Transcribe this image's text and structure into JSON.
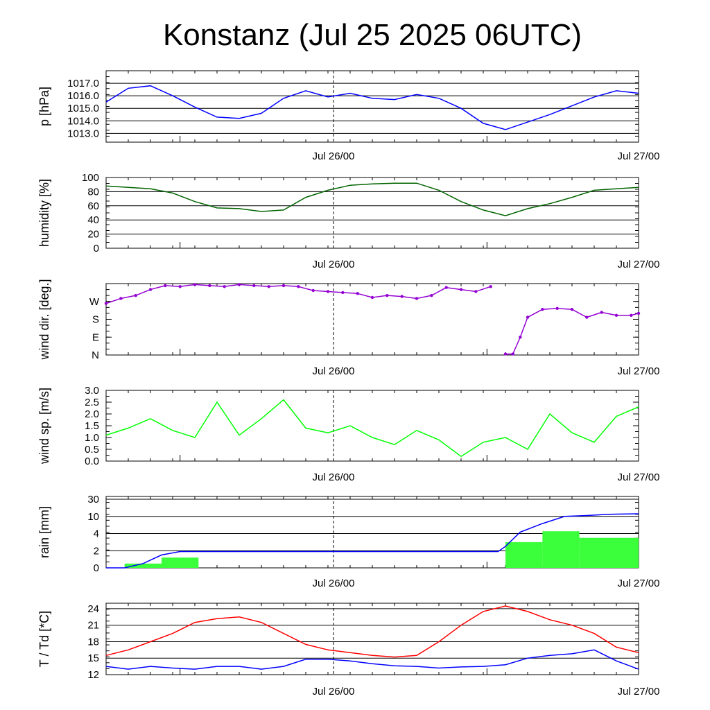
{
  "title": "Konstanz (Jul 25 2025 06UTC)",
  "colors": {
    "pressure": "#0000ff",
    "humidity": "#006400",
    "wind_dir": "#9400d3",
    "wind_speed": "#00ff00",
    "rain_bar": "#3cff3c",
    "rain_sum": "#0000ff",
    "temperature": "#ff0000",
    "dewpoint": "#0000ff"
  },
  "chart_data": [
    {
      "type": "line",
      "ylabel": "p [hPa]",
      "x_ticks": [
        "Jul 26/00",
        "Jul 27/00"
      ],
      "x_hours": [
        0,
        6,
        12,
        18,
        24,
        30,
        36,
        42,
        48,
        54,
        60,
        66,
        72,
        78,
        84,
        90,
        96,
        102,
        108,
        114,
        120,
        126,
        132,
        138,
        144
      ],
      "ylim": [
        1012.0,
        1018.0
      ],
      "y_ticks": [
        "1013.0",
        "1014.0",
        "1015.0",
        "1016.0",
        "1017.0"
      ],
      "series": [
        {
          "values": [
            1015.5,
            1016.6,
            1016.8,
            1016.0,
            1015.1,
            1014.3,
            1014.2,
            1014.6,
            1015.8,
            1016.4,
            1015.9,
            1016.2,
            1015.8,
            1015.7,
            1016.1,
            1015.8,
            1015.0,
            1013.8,
            1013.3,
            1013.9,
            1014.5,
            1015.2,
            1015.9,
            1016.4,
            1016.2
          ]
        }
      ]
    },
    {
      "type": "line",
      "ylabel": "humidity [%]",
      "x_ticks": [
        "Jul 26/00",
        "Jul 27/00"
      ],
      "x_hours": [
        0,
        6,
        12,
        18,
        24,
        30,
        36,
        42,
        48,
        54,
        60,
        66,
        72,
        78,
        84,
        90,
        96,
        102,
        108,
        114,
        120,
        126,
        132,
        138,
        144
      ],
      "ylim": [
        0,
        100
      ],
      "y_ticks": [
        "0",
        "20",
        "40",
        "60",
        "80",
        "100"
      ],
      "series": [
        {
          "values": [
            88,
            86,
            84,
            78,
            66,
            57,
            56,
            52,
            54,
            72,
            82,
            89,
            91,
            92,
            92,
            82,
            66,
            54,
            46,
            56,
            63,
            72,
            82,
            84,
            86
          ]
        }
      ]
    },
    {
      "type": "scatter",
      "ylabel": "wind dir. [deg.]",
      "x_ticks": [
        "Jul 26/00",
        "Jul 27/00"
      ],
      "x_hours": [
        0,
        4,
        8,
        12,
        16,
        20,
        24,
        28,
        32,
        36,
        40,
        44,
        48,
        52,
        56,
        60,
        64,
        68,
        72,
        76,
        80,
        84,
        88,
        92,
        96,
        100,
        104,
        108,
        110,
        112,
        114,
        118,
        122,
        126,
        130,
        134,
        138,
        142,
        144
      ],
      "ylim": [
        0,
        360
      ],
      "y_ticks": [
        "N",
        "E",
        "S",
        "W"
      ],
      "series": [
        {
          "values": [
            260,
            285,
            300,
            330,
            350,
            345,
            355,
            350,
            345,
            355,
            350,
            345,
            350,
            345,
            325,
            320,
            315,
            310,
            290,
            300,
            295,
            285,
            300,
            340,
            330,
            320,
            345,
            5,
            5,
            90,
            190,
            230,
            235,
            230,
            190,
            215,
            200,
            200,
            210
          ]
        }
      ]
    },
    {
      "type": "line",
      "ylabel": "wind sp. [m/s]",
      "x_ticks": [
        "Jul 26/00",
        "Jul 27/00"
      ],
      "x_hours": [
        0,
        6,
        12,
        18,
        24,
        30,
        36,
        42,
        48,
        54,
        60,
        66,
        72,
        78,
        84,
        90,
        96,
        102,
        108,
        114,
        120,
        126,
        132,
        138,
        144
      ],
      "ylim": [
        0.0,
        3.0
      ],
      "y_ticks": [
        "0.0",
        "0.5",
        "1.0",
        "1.5",
        "2.0",
        "2.5",
        "3.0"
      ],
      "series": [
        {
          "values": [
            1.1,
            1.4,
            1.8,
            1.3,
            1.0,
            2.5,
            1.1,
            1.8,
            2.6,
            1.4,
            1.2,
            1.5,
            1.0,
            0.7,
            1.3,
            0.9,
            0.2,
            0.8,
            1.0,
            0.5,
            2.0,
            1.2,
            0.8,
            1.9,
            2.3
          ]
        }
      ]
    },
    {
      "type": "bar",
      "ylabel": "rain [mm]",
      "x_ticks": [
        "Jul 26/00",
        "Jul 27/00"
      ],
      "y_ticks": [
        "0",
        "2",
        "4",
        "10",
        "30"
      ],
      "bars": [
        {
          "x_start": 5,
          "x_end": 15,
          "value": 0.5
        },
        {
          "x_start": 15,
          "x_end": 25,
          "value": 1.2
        },
        {
          "x_start": 108,
          "x_end": 118,
          "value": 3.0
        },
        {
          "x_start": 118,
          "x_end": 128,
          "value": 4.8
        },
        {
          "x_start": 128,
          "x_end": 144,
          "value": 3.5
        }
      ],
      "series": [
        {
          "x_hours": [
            0,
            5,
            10,
            15,
            20,
            25,
            60,
            100,
            106,
            108,
            112,
            118,
            124,
            130,
            136,
            144
          ],
          "values": [
            0,
            0,
            0.5,
            1.5,
            1.9,
            1.9,
            1.9,
            1.9,
            1.9,
            2.5,
            4.5,
            7.5,
            10.0,
            11.0,
            12.5,
            13.0
          ]
        }
      ]
    },
    {
      "type": "line",
      "ylabel": "T / Td [*C]",
      "x_ticks": [
        "Jul 26/00",
        "Jul 27/00"
      ],
      "x_hours": [
        0,
        6,
        12,
        18,
        24,
        30,
        36,
        42,
        48,
        54,
        60,
        66,
        72,
        78,
        84,
        90,
        96,
        102,
        108,
        114,
        120,
        126,
        132,
        138,
        144
      ],
      "ylim": [
        12,
        25
      ],
      "y_ticks": [
        "12",
        "15",
        "18",
        "21",
        "24"
      ],
      "series": [
        {
          "values": [
            15.5,
            16.5,
            18.0,
            19.5,
            21.5,
            22.2,
            22.5,
            21.5,
            19.5,
            17.5,
            16.5,
            16.0,
            15.5,
            15.2,
            15.5,
            18.0,
            21.0,
            23.5,
            24.5,
            23.5,
            22.0,
            21.0,
            19.5,
            17.0,
            16.0
          ]
        },
        {
          "values": [
            13.5,
            13.0,
            13.5,
            13.2,
            13.0,
            13.5,
            13.5,
            13.0,
            13.5,
            14.8,
            14.8,
            14.5,
            14.0,
            13.6,
            13.5,
            13.2,
            13.4,
            13.5,
            13.8,
            15.0,
            15.5,
            15.8,
            16.5,
            14.5,
            13.0
          ]
        }
      ]
    }
  ]
}
